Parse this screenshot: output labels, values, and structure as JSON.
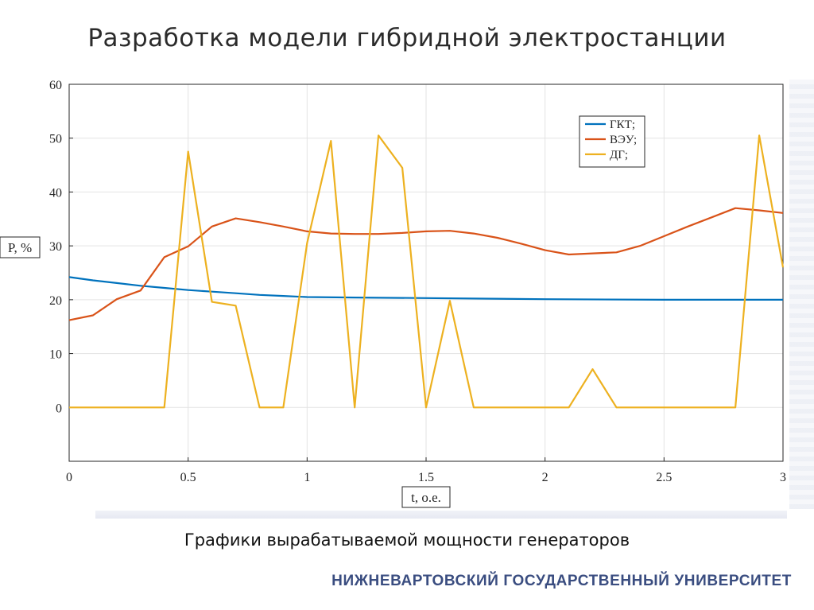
{
  "slide": {
    "title": "Разработка модели гибридной электростанции",
    "caption": "Графики вырабатываемой мощности генераторов",
    "university": "НИЖНЕВАРТОВСКИЙ ГОСУДАРСТВЕННЫЙ УНИВЕРСИТЕТ"
  },
  "chart_data": {
    "type": "line",
    "xlabel": "t, o.e.",
    "ylabel": "P, %",
    "xlim": [
      0,
      3
    ],
    "ylim": [
      -10,
      60
    ],
    "xticks": [
      0,
      0.5,
      1,
      1.5,
      2,
      2.5,
      3
    ],
    "xtick_labels": [
      "0",
      "0.5",
      "1",
      "1.5",
      "2",
      "2.5",
      "3"
    ],
    "yticks": [
      0,
      10,
      20,
      30,
      40,
      50,
      60
    ],
    "ytick_labels": [
      "0",
      "10",
      "20",
      "30",
      "40",
      "50",
      "60"
    ],
    "grid": true,
    "legend_position": "top-right",
    "series": [
      {
        "name": "ГКТ;",
        "color": "#0072bd",
        "x": [
          0,
          0.1,
          0.2,
          0.3,
          0.4,
          0.5,
          0.6,
          0.7,
          0.8,
          0.9,
          1.0,
          1.2,
          1.5,
          2.0,
          2.5,
          3.0
        ],
        "y": [
          24.2,
          23.6,
          23.1,
          22.6,
          22.2,
          21.8,
          21.5,
          21.2,
          20.9,
          20.7,
          20.5,
          20.4,
          20.3,
          20.1,
          20.0,
          20.0
        ]
      },
      {
        "name": "ВЭУ;",
        "color": "#d95319",
        "x": [
          0,
          0.1,
          0.2,
          0.3,
          0.4,
          0.5,
          0.6,
          0.7,
          0.8,
          0.9,
          1.0,
          1.1,
          1.2,
          1.3,
          1.4,
          1.5,
          1.6,
          1.7,
          1.8,
          1.9,
          2.0,
          2.1,
          2.2,
          2.3,
          2.4,
          2.5,
          2.6,
          2.7,
          2.8,
          2.9,
          3.0
        ],
        "y": [
          16.2,
          17.1,
          20.1,
          21.7,
          27.9,
          29.9,
          33.6,
          35.1,
          34.4,
          33.6,
          32.7,
          32.3,
          32.2,
          32.2,
          32.4,
          32.7,
          32.8,
          32.3,
          31.5,
          30.4,
          29.2,
          28.4,
          28.6,
          28.8,
          30.0,
          31.8,
          33.6,
          35.3,
          37.0,
          36.6,
          36.1
        ]
      },
      {
        "name": "ДГ;",
        "color": "#edb120",
        "x": [
          0,
          0.4,
          0.5,
          0.6,
          0.7,
          0.8,
          0.9,
          1.0,
          1.1,
          1.2,
          1.3,
          1.4,
          1.5,
          1.6,
          1.7,
          2.1,
          2.2,
          2.3,
          2.8,
          2.9,
          3.0
        ],
        "y": [
          0,
          0,
          47.5,
          19.6,
          18.9,
          0,
          0,
          30.5,
          49.5,
          0,
          50.5,
          44.5,
          0,
          19.8,
          0,
          0,
          7.1,
          0,
          0,
          50.5,
          26.0
        ]
      }
    ]
  }
}
